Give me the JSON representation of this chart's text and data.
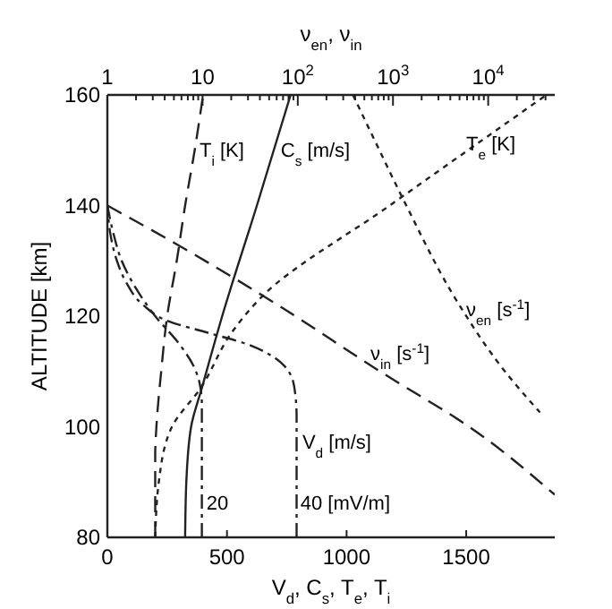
{
  "chart_data": {
    "type": "line",
    "xlabel": "V$_{d}$, C$_{s}$, T$_{e}$, T$_{i}$",
    "x2label": "ν$_{en}$, ν$_{in}$",
    "ylabel": "ALTITUDE [km]",
    "xlim": [
      0,
      1870
    ],
    "xticks": [
      0,
      500,
      1000,
      1500
    ],
    "x2lim": [
      1,
      50000
    ],
    "x2ticks": [
      1,
      {
        "value": 2,
        "label": null
      },
      {
        "value": 3,
        "label": null
      },
      {
        "value": 4,
        "label": null
      },
      {
        "value": 5,
        "label": null
      },
      {
        "value": 6,
        "label": null
      },
      {
        "value": 7,
        "label": null
      },
      {
        "value": 8,
        "label": null
      },
      {
        "value": 9,
        "label": null
      },
      10,
      {
        "value": 20,
        "label": null
      },
      {
        "value": 30,
        "label": null
      },
      {
        "value": 40,
        "label": null
      },
      {
        "value": 50,
        "label": null
      },
      {
        "value": 60,
        "label": null
      },
      {
        "value": 70,
        "label": null
      },
      {
        "value": 80,
        "label": null
      },
      {
        "value": 90,
        "label": null
      },
      {
        "value": 100,
        "label": "10$^{2}$"
      },
      {
        "value": 200,
        "label": null
      },
      {
        "value": 300,
        "label": null
      },
      {
        "value": 400,
        "label": null
      },
      {
        "value": 500,
        "label": null
      },
      {
        "value": 600,
        "label": null
      },
      {
        "value": 700,
        "label": null
      },
      {
        "value": 800,
        "label": null
      },
      {
        "value": 900,
        "label": null
      },
      {
        "value": 1000,
        "label": "10$^{3}$"
      },
      {
        "value": 2000,
        "label": null
      },
      {
        "value": 3000,
        "label": null
      },
      {
        "value": 4000,
        "label": null
      },
      {
        "value": 5000,
        "label": null
      },
      {
        "value": 6000,
        "label": null
      },
      {
        "value": 7000,
        "label": null
      },
      {
        "value": 8000,
        "label": null
      },
      {
        "value": 9000,
        "label": null
      },
      {
        "value": 10000,
        "label": "10$^{4}$"
      },
      {
        "value": 20000,
        "label": null
      },
      {
        "value": 30000,
        "label": null
      },
      {
        "value": 40000,
        "label": null
      }
    ],
    "log": "x2",
    "ylim": [
      80,
      160
    ],
    "yticks": [
      80,
      100,
      120,
      140,
      160
    ],
    "grid": false,
    "marker": "none",
    "series": [
      {
        "color": "#222222",
        "line_style": "dashed",
        "x": [
          200,
          200,
          205,
          225,
          250,
          290,
          325,
          365,
          400
        ],
        "values": [
          80,
          95,
          100,
          110,
          120,
          130,
          140,
          150,
          160
        ]
      },
      {
        "color": "#222222",
        "line_style": "solid",
        "x": [
          325,
          330,
          350,
          395,
          480,
          625,
          766
        ],
        "values": [
          80,
          90,
          100,
          107,
          120,
          140,
          160
        ]
      },
      {
        "color": "#222222",
        "line_style": "dashdot",
        "x": [
          395,
          395,
          385,
          360,
          300,
          200,
          120,
          60,
          25,
          0
        ],
        "values": [
          80,
          104,
          108,
          111,
          115,
          120,
          125,
          130,
          135,
          140
        ]
      },
      {
        "color": "#222222",
        "line_style": "dashdot",
        "x": [
          791,
          791,
          785,
          770,
          740,
          680,
          580,
          420,
          260,
          150,
          80,
          40,
          12,
          0
        ],
        "values": [
          80,
          102,
          106,
          109,
          111,
          113,
          115,
          117,
          119,
          122,
          126,
          130,
          135,
          140
        ]
      },
      {
        "color": "#222222",
        "line_style": "dotted",
        "x": [
          200,
          215,
          270,
          390,
          524,
          650,
          1180,
          1835
        ],
        "values": [
          80,
          90,
          100,
          107,
          117.3,
          123.7,
          140,
          160
        ]
      },
      {
        "color": "#222222",
        "line_style": "dashed",
        "axis": "x2",
        "x": [
          1,
          5.1,
          43,
          850,
          6300,
          50000
        ],
        "values": [
          140,
          133.2,
          123.7,
          109.3,
          100,
          87.7
        ]
      },
      {
        "color": "#222222",
        "line_style": "dotted",
        "axis": "x2",
        "x": [
          380,
          720,
          1380,
          4700,
          15000,
          35000
        ],
        "values": [
          160,
          150,
          140,
          122.7,
          110,
          102.6
        ]
      }
    ],
    "annotations": [
      {
        "text": "T$_{i}$ [K]",
        "x": 385,
        "y": 148.8
      },
      {
        "text": "C$_{s}$ [m/s]",
        "x": 725,
        "y": 148.8
      },
      {
        "text": "T$_{e}$ [K]",
        "x": 1500,
        "y": 150
      },
      {
        "text": "ν$_{en}$ [s$^{-1}$]",
        "x": 1500,
        "y": 120
      },
      {
        "text": "ν$_{in}$ [s$^{-1}$]",
        "x": 1100,
        "y": 112
      },
      {
        "text": "V$_{d}$ [m/s]",
        "x": 815,
        "y": 96
      },
      {
        "text": "20",
        "x": 414,
        "y": 85
      },
      {
        "text": "40 [mV/m]",
        "x": 807,
        "y": 85
      }
    ]
  }
}
